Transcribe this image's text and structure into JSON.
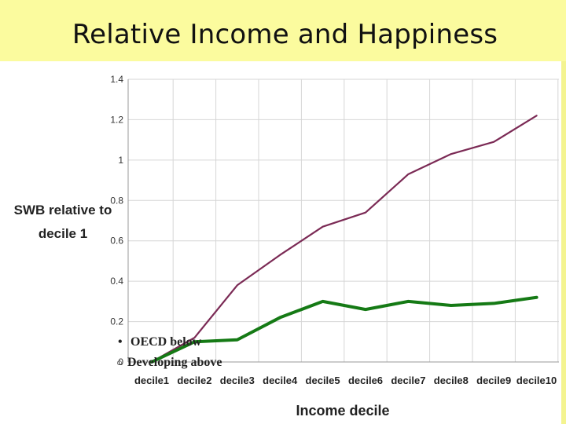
{
  "slide": {
    "title": "Relative Income and Happiness"
  },
  "legend": {
    "line1": "OECD below",
    "line2": "Developing above"
  },
  "colors": {
    "developing": "#7b2a55",
    "oecd": "#157a15",
    "grid": "#d6d6d6",
    "background": "#fbfb9e"
  },
  "chart_data": {
    "type": "line",
    "title": "",
    "xlabel": "Income decile",
    "ylabel": "SWB relative to decile 1",
    "ylabel_lines": [
      "SWB relative to",
      "decile 1"
    ],
    "ylim": [
      0,
      1.4
    ],
    "yticks": [
      "0",
      "0.2",
      "0.4",
      "0.6",
      "0.8",
      "1",
      "1.2",
      "1.4"
    ],
    "categories": [
      "decile1",
      "decile2",
      "decile3",
      "decile4",
      "decile5",
      "decile6",
      "decile7",
      "decile8",
      "decile9",
      "decile10"
    ],
    "grid": true,
    "series": [
      {
        "name": "Developing",
        "values": [
          0,
          0.12,
          0.38,
          0.53,
          0.67,
          0.74,
          0.93,
          1.03,
          1.09,
          1.22
        ]
      },
      {
        "name": "OECD",
        "values": [
          0,
          0.1,
          0.11,
          0.22,
          0.3,
          0.26,
          0.3,
          0.28,
          0.29,
          0.32
        ]
      }
    ]
  }
}
